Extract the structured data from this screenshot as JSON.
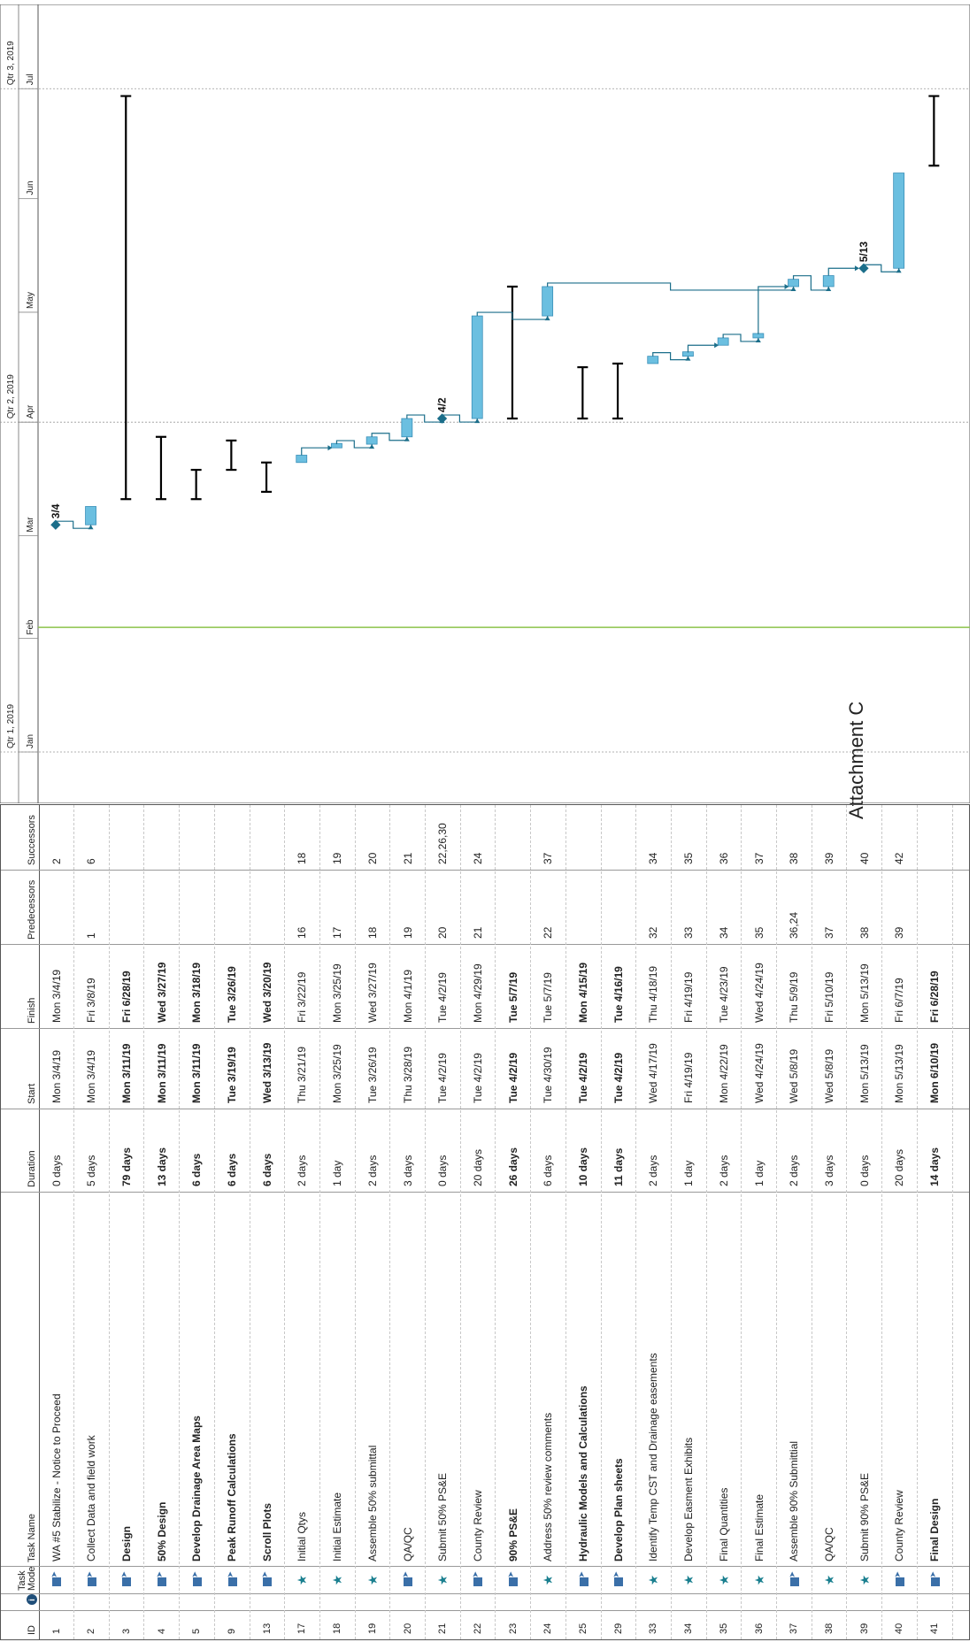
{
  "title": "Attachment C",
  "columns": {
    "id": "ID",
    "info": "i",
    "mode": "Task Mode",
    "name": "Task Name",
    "duration": "Duration",
    "start": "Start",
    "finish": "Finish",
    "predecessors": "Predecessors",
    "successors": "Successors"
  },
  "timescale": {
    "quarters": [
      {
        "label": "Qtr 1, 2019",
        "date": "2019-01-01"
      },
      {
        "label": "Qtr 2, 2019",
        "date": "2019-04-01"
      },
      {
        "label": "Qtr 3, 2019",
        "date": "2019-07-01"
      }
    ],
    "months": [
      {
        "label": "Jan",
        "date": "2019-01-01"
      },
      {
        "label": "Feb",
        "date": "2019-02-01"
      },
      {
        "label": "Mar",
        "date": "2019-03-01"
      },
      {
        "label": "Apr",
        "date": "2019-04-01"
      },
      {
        "label": "May",
        "date": "2019-05-01"
      },
      {
        "label": "Jun",
        "date": "2019-06-01"
      },
      {
        "label": "Jul",
        "date": "2019-07-01"
      }
    ],
    "range": [
      "2018-12-18",
      "2019-07-24"
    ],
    "today_line": "2019-02-04",
    "colors": {
      "task_fill": "#6bbfe0",
      "task_border": "#3a8fb8",
      "link": "#1b6e8a",
      "summary": "#000000",
      "today": "#8bc34a",
      "gridline": "#999999",
      "milestone": "#1b6e8a"
    }
  },
  "tasks": [
    {
      "id": "1",
      "mode": "auto",
      "name": "WA #5 Stabilize - Notice to Proceed",
      "bold": false,
      "duration": "0 days",
      "start": "Mon 3/4/19",
      "finish": "Mon 3/4/19",
      "pred": "",
      "succ": "2",
      "kind": "milestone",
      "d0": "2019-03-04",
      "d1": "2019-03-04",
      "label": "3/4"
    },
    {
      "id": "2",
      "mode": "auto",
      "name": "Collect Data and field work",
      "bold": false,
      "duration": "5 days",
      "start": "Mon 3/4/19",
      "finish": "Fri 3/8/19",
      "pred": "1",
      "succ": "6",
      "kind": "task",
      "d0": "2019-03-04",
      "d1": "2019-03-09"
    },
    {
      "id": "3",
      "mode": "auto",
      "name": "Design",
      "bold": true,
      "duration": "79 days",
      "start": "Mon 3/11/19",
      "finish": "Fri 6/28/19",
      "pred": "",
      "succ": "",
      "kind": "summary",
      "d0": "2019-03-11",
      "d1": "2019-06-29"
    },
    {
      "id": "4",
      "mode": "auto",
      "name": "50% Design",
      "bold": true,
      "duration": "13 days",
      "start": "Mon 3/11/19",
      "finish": "Wed 3/27/19",
      "pred": "",
      "succ": "",
      "kind": "summary",
      "d0": "2019-03-11",
      "d1": "2019-03-28"
    },
    {
      "id": "5",
      "mode": "auto",
      "name": "Develop Drainage Area Maps",
      "bold": true,
      "duration": "6 days",
      "start": "Mon 3/11/19",
      "finish": "Mon 3/18/19",
      "pred": "",
      "succ": "",
      "kind": "summary",
      "d0": "2019-03-11",
      "d1": "2019-03-19"
    },
    {
      "id": "9",
      "mode": "auto",
      "name": "Peak Runoff Calculations",
      "bold": true,
      "duration": "6 days",
      "start": "Tue 3/19/19",
      "finish": "Tue 3/26/19",
      "pred": "",
      "succ": "",
      "kind": "summary",
      "d0": "2019-03-19",
      "d1": "2019-03-27"
    },
    {
      "id": "13",
      "mode": "auto",
      "name": "Scroll Plots",
      "bold": true,
      "duration": "6 days",
      "start": "Wed 3/13/19",
      "finish": "Wed 3/20/19",
      "pred": "",
      "succ": "",
      "kind": "summary",
      "d0": "2019-03-13",
      "d1": "2019-03-21"
    },
    {
      "id": "17",
      "mode": "manual",
      "name": "Initial Qtys",
      "bold": false,
      "duration": "2 days",
      "start": "Thu 3/21/19",
      "finish": "Fri 3/22/19",
      "pred": "16",
      "succ": "18",
      "kind": "task",
      "d0": "2019-03-21",
      "d1": "2019-03-23"
    },
    {
      "id": "18",
      "mode": "manual",
      "name": "Initial Estimate",
      "bold": false,
      "duration": "1 day",
      "start": "Mon 3/25/19",
      "finish": "Mon 3/25/19",
      "pred": "17",
      "succ": "19",
      "kind": "task",
      "d0": "2019-03-25",
      "d1": "2019-03-26"
    },
    {
      "id": "19",
      "mode": "manual",
      "name": "Assemble 50% submittal",
      "bold": false,
      "duration": "2 days",
      "start": "Tue 3/26/19",
      "finish": "Wed 3/27/19",
      "pred": "18",
      "succ": "20",
      "kind": "task",
      "d0": "2019-03-26",
      "d1": "2019-03-28"
    },
    {
      "id": "20",
      "mode": "auto",
      "name": "QA/QC",
      "bold": false,
      "duration": "3 days",
      "start": "Thu 3/28/19",
      "finish": "Mon 4/1/19",
      "pred": "19",
      "succ": "21",
      "kind": "task",
      "d0": "2019-03-28",
      "d1": "2019-04-02"
    },
    {
      "id": "21",
      "mode": "manual",
      "name": "Submit 50% PS&E",
      "bold": false,
      "duration": "0 days",
      "start": "Tue 4/2/19",
      "finish": "Tue 4/2/19",
      "pred": "20",
      "succ": "22,26,30",
      "kind": "milestone",
      "d0": "2019-04-02",
      "d1": "2019-04-02",
      "label": "4/2"
    },
    {
      "id": "22",
      "mode": "auto",
      "name": "County Review",
      "bold": false,
      "duration": "20 days",
      "start": "Tue 4/2/19",
      "finish": "Mon 4/29/19",
      "pred": "21",
      "succ": "24",
      "kind": "task",
      "d0": "2019-04-02",
      "d1": "2019-04-30"
    },
    {
      "id": "23",
      "mode": "auto",
      "name": "90% PS&E",
      "bold": true,
      "duration": "26 days",
      "start": "Tue 4/2/19",
      "finish": "Tue 5/7/19",
      "pred": "",
      "succ": "",
      "kind": "summary",
      "d0": "2019-04-02",
      "d1": "2019-05-08"
    },
    {
      "id": "24",
      "mode": "manual",
      "name": "Address 50% review comments",
      "bold": false,
      "duration": "6 days",
      "start": "Tue 4/30/19",
      "finish": "Tue 5/7/19",
      "pred": "22",
      "succ": "37",
      "kind": "task",
      "d0": "2019-04-30",
      "d1": "2019-05-08"
    },
    {
      "id": "25",
      "mode": "auto",
      "name": "Hydraulic Models and Calculations",
      "bold": true,
      "duration": "10 days",
      "start": "Tue 4/2/19",
      "finish": "Mon 4/15/19",
      "pred": "",
      "succ": "",
      "kind": "summary",
      "d0": "2019-04-02",
      "d1": "2019-04-16"
    },
    {
      "id": "29",
      "mode": "auto",
      "name": "Develop Plan sheets",
      "bold": true,
      "duration": "11 days",
      "start": "Tue 4/2/19",
      "finish": "Tue 4/16/19",
      "pred": "",
      "succ": "",
      "kind": "summary",
      "d0": "2019-04-02",
      "d1": "2019-04-17"
    },
    {
      "id": "33",
      "mode": "manual",
      "name": "Identify Temp CST and Drainage easements",
      "bold": false,
      "duration": "2 days",
      "start": "Wed 4/17/19",
      "finish": "Thu 4/18/19",
      "pred": "32",
      "succ": "34",
      "kind": "task",
      "d0": "2019-04-17",
      "d1": "2019-04-19"
    },
    {
      "id": "34",
      "mode": "manual",
      "name": "Develop Easment Exhibits",
      "bold": false,
      "duration": "1 day",
      "start": "Fri 4/19/19",
      "finish": "Fri 4/19/19",
      "pred": "33",
      "succ": "35",
      "kind": "task",
      "d0": "2019-04-19",
      "d1": "2019-04-20"
    },
    {
      "id": "35",
      "mode": "manual",
      "name": "Final Quantities",
      "bold": false,
      "duration": "2 days",
      "start": "Mon 4/22/19",
      "finish": "Tue 4/23/19",
      "pred": "34",
      "succ": "36",
      "kind": "task",
      "d0": "2019-04-22",
      "d1": "2019-04-24"
    },
    {
      "id": "36",
      "mode": "manual",
      "name": "Final Estimate",
      "bold": false,
      "duration": "1 day",
      "start": "Wed 4/24/19",
      "finish": "Wed 4/24/19",
      "pred": "35",
      "succ": "37",
      "kind": "task",
      "d0": "2019-04-24",
      "d1": "2019-04-25"
    },
    {
      "id": "37",
      "mode": "auto",
      "name": "Assemble 90% Submittial",
      "bold": false,
      "duration": "2 days",
      "start": "Wed 5/8/19",
      "finish": "Thu 5/9/19",
      "pred": "36,24",
      "succ": "38",
      "kind": "task",
      "d0": "2019-05-08",
      "d1": "2019-05-10"
    },
    {
      "id": "38",
      "mode": "manual",
      "name": "QA/QC",
      "bold": false,
      "duration": "3 days",
      "start": "Wed 5/8/19",
      "finish": "Fri 5/10/19",
      "pred": "37",
      "succ": "39",
      "kind": "task",
      "d0": "2019-05-08",
      "d1": "2019-05-11"
    },
    {
      "id": "39",
      "mode": "manual",
      "name": "Submit 90% PS&E",
      "bold": false,
      "duration": "0 days",
      "start": "Mon 5/13/19",
      "finish": "Mon 5/13/19",
      "pred": "38",
      "succ": "40",
      "kind": "milestone",
      "d0": "2019-05-13",
      "d1": "2019-05-13",
      "label": "5/13"
    },
    {
      "id": "40",
      "mode": "auto",
      "name": "County Review",
      "bold": false,
      "duration": "20 days",
      "start": "Mon 5/13/19",
      "finish": "Fri 6/7/19",
      "pred": "39",
      "succ": "42",
      "kind": "task",
      "d0": "2019-05-13",
      "d1": "2019-06-08"
    },
    {
      "id": "41",
      "mode": "auto",
      "name": "Final Design",
      "bold": true,
      "duration": "14 days",
      "start": "Mon 6/10/19",
      "finish": "Fri 6/28/19",
      "pred": "",
      "succ": "",
      "kind": "summary",
      "d0": "2019-06-10",
      "d1": "2019-06-29"
    }
  ]
}
